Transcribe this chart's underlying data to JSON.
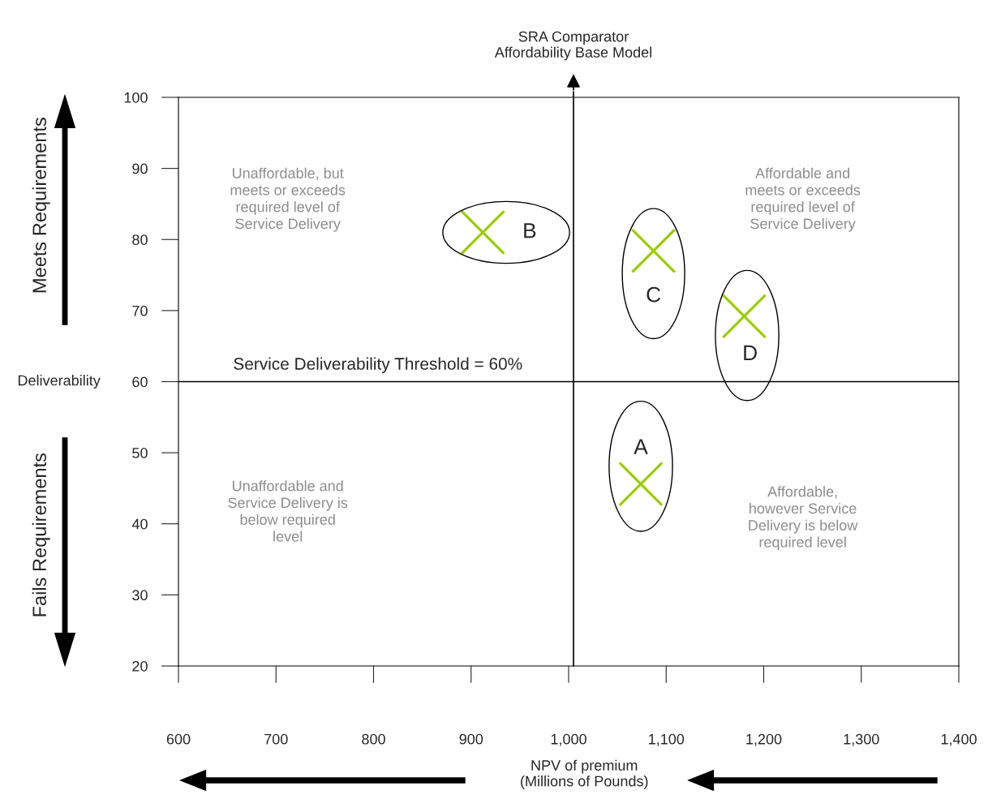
{
  "chart_data": {
    "type": "scatter",
    "xlabel": "NPV of premium\n(Millions of Pounds)",
    "ylabel": "Deliverability",
    "xlim": [
      600,
      1400
    ],
    "ylim": [
      20,
      100
    ],
    "xticks": [
      600,
      700,
      800,
      900,
      {
        "value": 1000,
        "label": "1,000"
      },
      {
        "value": 1100,
        "label": "1,100"
      },
      {
        "value": 1200,
        "label": "1,200"
      },
      {
        "value": 1300,
        "label": "1,300"
      },
      {
        "value": 1400,
        "label": "1,400"
      }
    ],
    "yticks": [
      20,
      30,
      40,
      50,
      60,
      70,
      80,
      90,
      100
    ],
    "marker": "cross",
    "grid": false,
    "legend": false,
    "series": [
      {
        "color": "#99cc00",
        "x": [
          1074,
          912,
          1087,
          1180
        ],
        "values": [
          45.6,
          81,
          78.4,
          69.2
        ]
      }
    ],
    "ref_lines": [
      {
        "axis": "x",
        "value": 1005,
        "label": "SRA Comparator\nAffordability Base Model",
        "color": "#000000"
      },
      {
        "axis": "y",
        "value": 60,
        "label": "Service Deliverability Threshold = 60%",
        "color": "#000000"
      }
    ],
    "annotations": [
      {
        "text": "A",
        "x": 1074,
        "y": 45.6
      },
      {
        "text": "B",
        "x": 912,
        "y": 81
      },
      {
        "text": "C",
        "x": 1087,
        "y": 78.4
      },
      {
        "text": "D",
        "x": 1180,
        "y": 69.2
      },
      "Unaffordable, but\nmeets or exceeds\nrequired level of\nService Delivery",
      "Affordable and\nmeets or exceeds\nrequired level of\nService Delivery",
      "Unaffordable and\nService Delivery is\nbelow required\nlevel",
      "Affordable,\nhowever Service\nDelivery is below\nrequired level",
      "Meets Requirements",
      "Fails Requirements"
    ]
  }
}
